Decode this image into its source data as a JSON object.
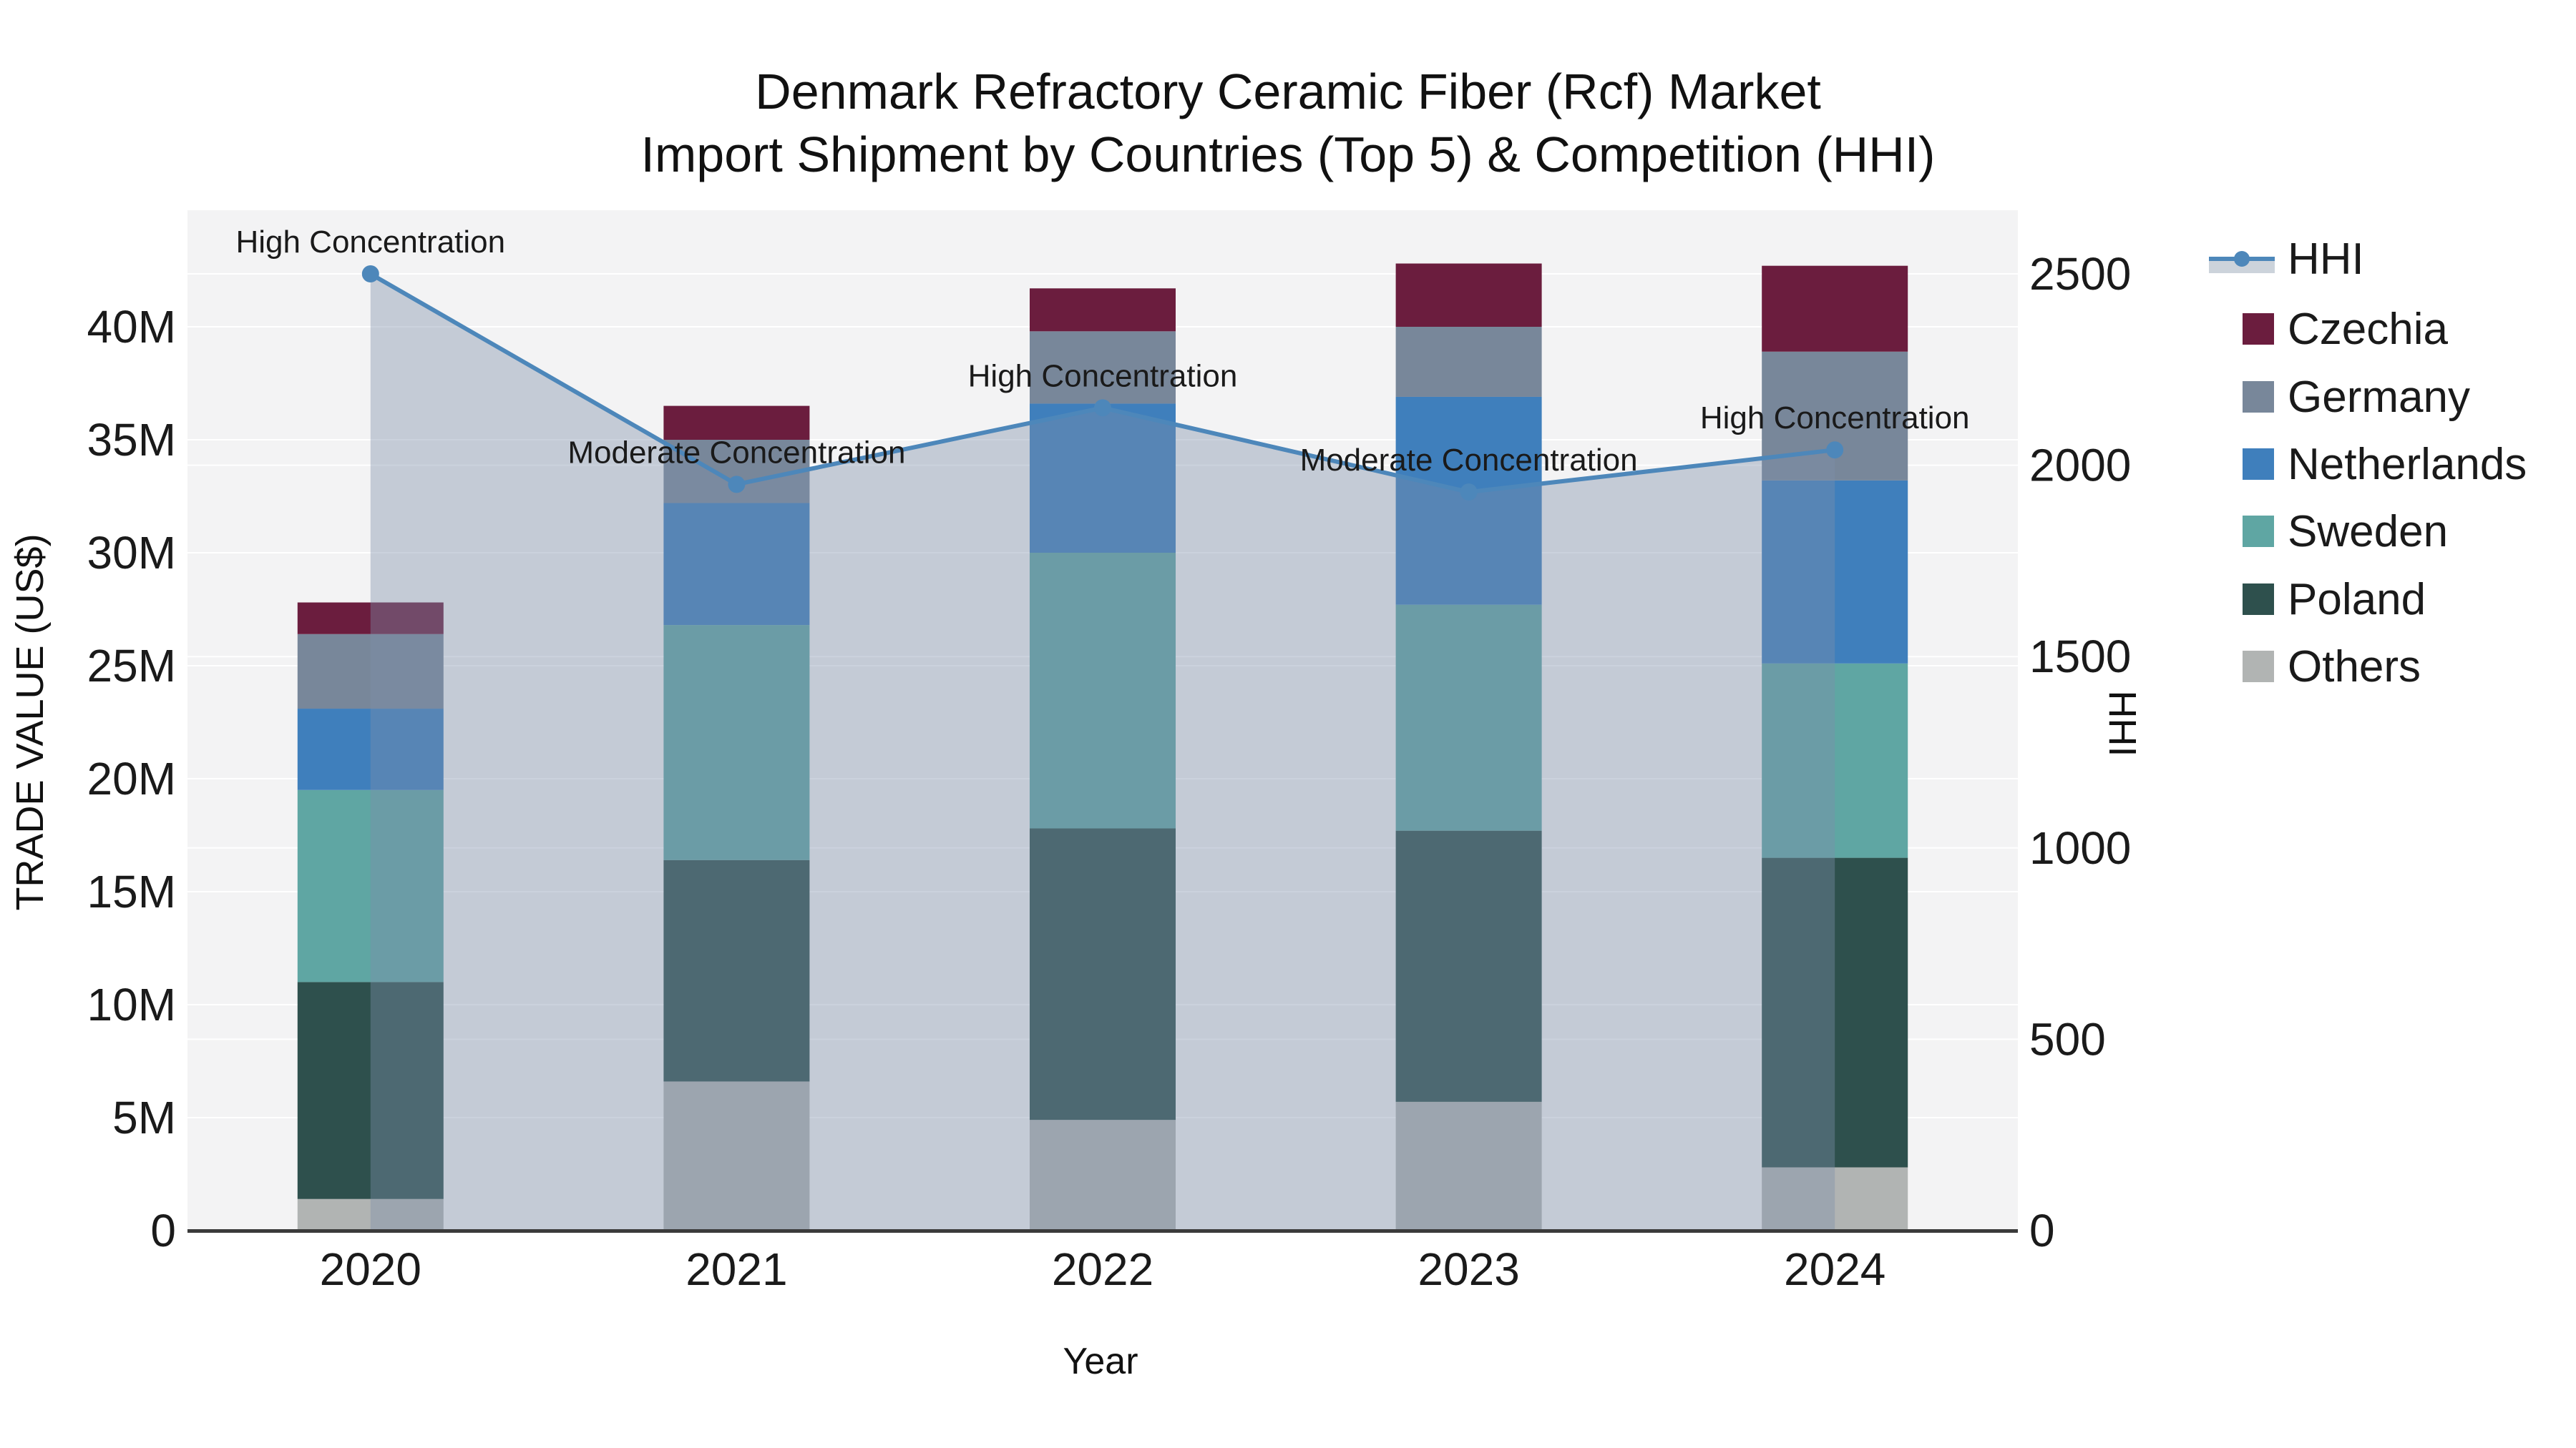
{
  "title": {
    "line1": "Denmark Refractory Ceramic Fiber (Rcf) Market",
    "line2": "Import Shipment by Countries (Top 5) & Competition (HHI)"
  },
  "axes": {
    "x": {
      "title": "Year",
      "categories": [
        "2020",
        "2021",
        "2022",
        "2023",
        "2024"
      ]
    },
    "y_left": {
      "title": "TRADE VALUE (US$)",
      "ticks": [
        {
          "label": "0",
          "value": 0
        },
        {
          "label": "5M",
          "value": 5
        },
        {
          "label": "10M",
          "value": 10
        },
        {
          "label": "15M",
          "value": 15
        },
        {
          "label": "20M",
          "value": 20
        },
        {
          "label": "25M",
          "value": 25
        },
        {
          "label": "30M",
          "value": 30
        },
        {
          "label": "35M",
          "value": 35
        },
        {
          "label": "40M",
          "value": 40
        }
      ]
    },
    "y_right": {
      "title": "HHI",
      "ticks": [
        {
          "label": "0",
          "value": 0
        },
        {
          "label": "500",
          "value": 500
        },
        {
          "label": "1000",
          "value": 1000
        },
        {
          "label": "1500",
          "value": 1500
        },
        {
          "label": "2000",
          "value": 2000
        },
        {
          "label": "2500",
          "value": 2500
        }
      ]
    }
  },
  "chart_data": {
    "type": "combo_stacked_bar_line",
    "categories": [
      "2020",
      "2021",
      "2022",
      "2023",
      "2024"
    ],
    "bar_value_unit": "US$ millions",
    "series": [
      {
        "name": "Others",
        "color": "#b1b4b3",
        "values": [
          1.4,
          6.6,
          4.9,
          5.7,
          2.8
        ]
      },
      {
        "name": "Poland",
        "color": "#2e504d",
        "values": [
          9.6,
          9.8,
          12.9,
          12.0,
          13.7
        ]
      },
      {
        "name": "Sweden",
        "color": "#5fa6a3",
        "values": [
          8.5,
          10.4,
          12.2,
          10.0,
          8.6
        ]
      },
      {
        "name": "Netherlands",
        "color": "#3f7fbc",
        "values": [
          3.6,
          5.4,
          6.6,
          9.2,
          8.1
        ]
      },
      {
        "name": "Germany",
        "color": "#78879a",
        "values": [
          3.3,
          2.8,
          3.2,
          3.1,
          5.7
        ]
      },
      {
        "name": "Czechia",
        "color": "#6b1d3e",
        "values": [
          1.4,
          1.5,
          1.9,
          2.8,
          3.8
        ]
      }
    ],
    "bar_totals_millions": [
      27.8,
      36.5,
      41.7,
      42.8,
      42.7
    ],
    "line_series": {
      "name": "HHI",
      "color": "#4d87ba",
      "area_fill": "rgba(125,143,170,0.40)",
      "values": [
        2500,
        1950,
        2150,
        1930,
        2040
      ]
    },
    "annotations": [
      {
        "category": "2020",
        "text": "High Concentration"
      },
      {
        "category": "2021",
        "text": "Moderate Concentration"
      },
      {
        "category": "2022",
        "text": "High Concentration"
      },
      {
        "category": "2023",
        "text": "Moderate Concentration"
      },
      {
        "category": "2024",
        "text": "High Concentration"
      }
    ],
    "ylim_left_millions": [
      0,
      45.2
    ],
    "ylim_right": [
      0,
      2670
    ],
    "grid": true,
    "legend_position": "right",
    "plot_bg": "#f3f3f4",
    "grid_color": "#ffffff",
    "axis_line_color": "#3b3b3b",
    "text_color": "#1a1a1a"
  },
  "legend": {
    "items": [
      {
        "label": "HHI",
        "type": "line_area",
        "line_color": "#4d87ba",
        "band_color": "#ccd3db"
      },
      {
        "label": "Czechia",
        "type": "swatch",
        "color": "#6b1d3e"
      },
      {
        "label": "Germany",
        "type": "swatch",
        "color": "#78879a"
      },
      {
        "label": "Netherlands",
        "type": "swatch",
        "color": "#3f7fbc"
      },
      {
        "label": "Sweden",
        "type": "swatch",
        "color": "#5fa6a3"
      },
      {
        "label": "Poland",
        "type": "swatch",
        "color": "#2e504d"
      },
      {
        "label": "Others",
        "type": "swatch",
        "color": "#b1b4b3"
      }
    ]
  }
}
